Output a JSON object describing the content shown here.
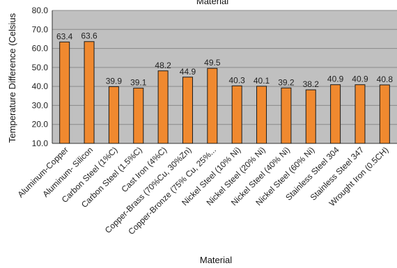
{
  "chart_data": {
    "type": "bar",
    "title": "Material",
    "xlabel": "Material",
    "ylabel": "Temperature Difference (Celsius",
    "ylim": [
      10,
      80
    ],
    "yticks": [
      "10.0",
      "20.0",
      "30.0",
      "40.0",
      "50.0",
      "60.0",
      "70.0",
      "80.0"
    ],
    "grid": true,
    "categories": [
      "Aluminum-Copper",
      "Aluminum- Silicon",
      "Carbon Steel (1%C)",
      "Carbon Steel (1.5%C)",
      "Cast Iron (4%C)",
      "Copper-Brass (70%Cu, 30%Zn)",
      "Copper-Bronze (75% Cu, 25%...",
      "Nickel Steel (10% Ni)",
      "Nickel Steel (20% Ni)",
      "Nickel Steel (40% Ni)",
      "Nickel Steel (60% Ni)",
      "Stainless Steel 304",
      "Stainless Steel 347",
      "Wrought Iron (0.5CH)"
    ],
    "values": [
      63.4,
      63.6,
      39.9,
      39.1,
      48.2,
      44.9,
      49.5,
      40.3,
      40.1,
      39.2,
      38.2,
      40.9,
      40.9,
      40.8
    ],
    "value_labels": [
      "63.4",
      "63.6",
      "39.9",
      "39.1",
      "48.2",
      "44.9",
      "49.5",
      "40.3",
      "40.1",
      "39.2",
      "38.2",
      "40.9",
      "40.9",
      "40.8"
    ],
    "colors": {
      "bar": "#f0892f",
      "bar_outline": "#1a1a1a",
      "plot_bg": "#c0c0c0",
      "grid": "#8a8a8a"
    }
  }
}
